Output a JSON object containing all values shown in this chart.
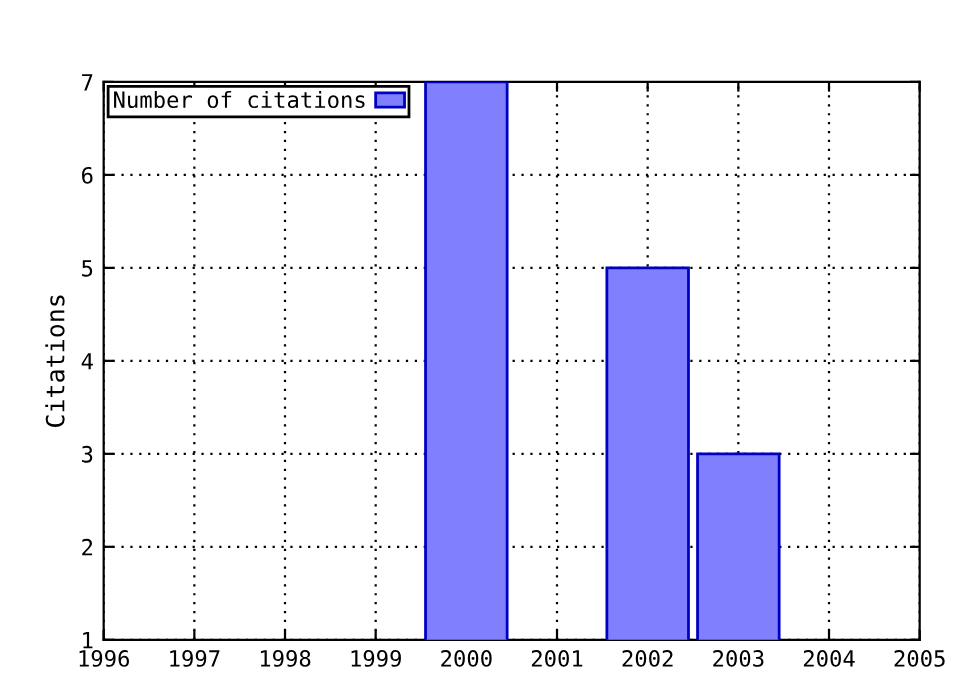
{
  "chart_data": {
    "type": "bar",
    "ylabel": "Citations",
    "x": [
      2000,
      2002,
      2003
    ],
    "series": [
      {
        "name": "Number of citations",
        "color": "#8080ff",
        "values": [
          7,
          5,
          3
        ]
      }
    ],
    "xlim": [
      1996,
      2005
    ],
    "xticks": [
      1996,
      1997,
      1998,
      1999,
      2000,
      2001,
      2002,
      2003,
      2004,
      2005
    ],
    "ylim": [
      1,
      7
    ],
    "yticks": [
      1,
      2,
      3,
      4,
      5,
      6,
      7
    ],
    "grid": true,
    "legend": "top left"
  }
}
